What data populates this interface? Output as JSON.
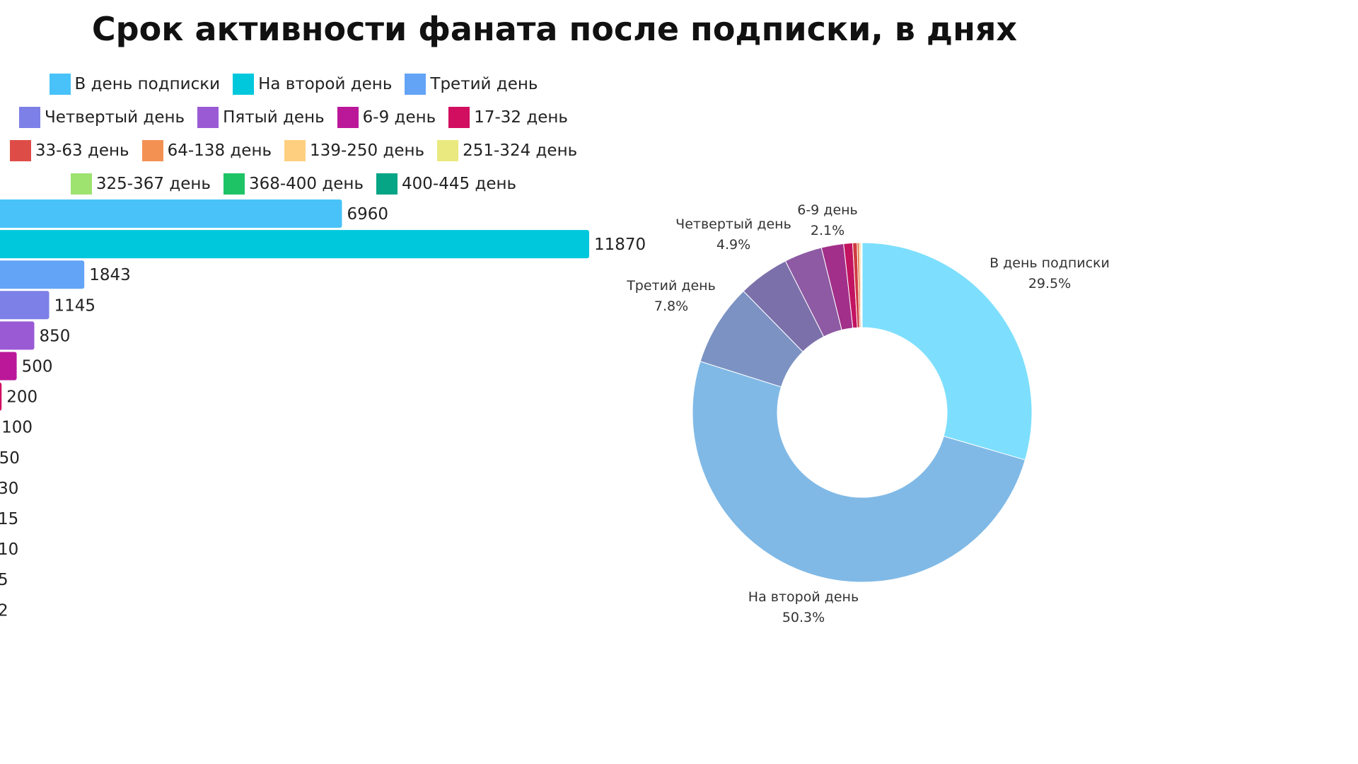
{
  "chart_data": [
    {
      "type": "bar",
      "orientation": "horizontal",
      "title": "Срок активности фаната после подписки, в днях",
      "categories": [
        "В день подписки",
        "На второй день",
        "Третий день",
        "Четвертый день",
        "Пятый день",
        "6-9 день",
        "17-32 день",
        "33-63 день",
        "64-138 день",
        "139-250 день",
        "251-324 день",
        "325-367 день",
        "368-400 день",
        "400-445 день"
      ],
      "values": [
        6960,
        11870,
        1843,
        1145,
        850,
        500,
        200,
        100,
        50,
        30,
        15,
        10,
        5,
        2
      ],
      "value_labels": [
        "6960",
        "11870",
        "1843",
        "1145",
        "850",
        "500",
        "200",
        "100",
        "50",
        "30",
        "15",
        "10",
        "5",
        "2"
      ],
      "colors": [
        "#48c2f8",
        "#00c8dc",
        "#63a4f7",
        "#7d80e6",
        "#9a5ad4",
        "#bb1899",
        "#d10e60",
        "#de4c48",
        "#f39153",
        "#fecf7f",
        "#e9e97f",
        "#9ee26f",
        "#1ec365",
        "#05a585"
      ],
      "legend": "top",
      "grid": false
    },
    {
      "type": "pie",
      "style": "donut",
      "categories": [
        "В день подписки",
        "На второй день",
        "Третий день",
        "Четвертый день",
        "Пятый день",
        "6-9 день",
        "17-32 день",
        "33-63 день",
        "64-138 день",
        "139-250 день",
        "251-324 день",
        "325-367 день",
        "368-400 день",
        "400-445 день"
      ],
      "values": [
        6960,
        11870,
        1843,
        1145,
        850,
        500,
        200,
        100,
        50,
        30,
        15,
        10,
        5,
        2
      ],
      "colors": [
        "#7ddffd",
        "#80b9e6",
        "#7c92c3",
        "#7c70ab",
        "#8d5aa3",
        "#a2308a",
        "#c21460",
        "#cf3b43",
        "#e07a44",
        "#f0bd6b",
        "#e5e07f",
        "#9ee26f",
        "#1ec365",
        "#05a585"
      ],
      "labels": [
        {
          "name": "В день подписки",
          "percent": "29.5%"
        },
        {
          "name": "На второй день",
          "percent": "50.3%"
        },
        {
          "name": "Третий день",
          "percent": "7.8%"
        },
        {
          "name": "Четвертый день",
          "percent": "4.9%"
        },
        {
          "name": "6-9 день",
          "percent": "2.1%"
        }
      ]
    }
  ]
}
